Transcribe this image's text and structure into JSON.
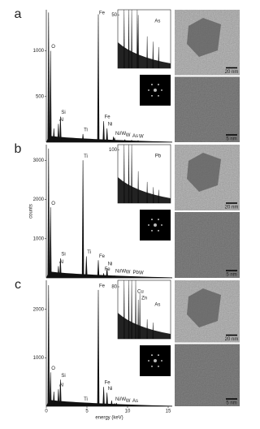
{
  "chart_data": [
    {
      "type": "spectrum",
      "panel": "a",
      "xlim": [
        0,
        15.5
      ],
      "ylim": [
        0,
        1450
      ],
      "yticks": [
        500,
        1000
      ],
      "peaks": {
        "x": [
          0.28,
          0.52,
          0.93,
          1.49,
          1.74,
          4.51,
          4.93,
          6.4,
          7.06,
          7.47,
          8.26,
          8.4,
          9.67,
          10.5,
          11.3
        ],
        "values": [
          1420,
          1000,
          150,
          200,
          280,
          90,
          30,
          1400,
          230,
          150,
          60,
          50,
          30,
          25,
          20
        ]
      },
      "peak_labels": [
        {
          "label": "O",
          "x": 0.52
        },
        {
          "label": "Al",
          "x": 1.49
        },
        {
          "label": "Si",
          "x": 1.74
        },
        {
          "label": "Ti",
          "x": 4.51
        },
        {
          "label": "Fe",
          "x": 6.4
        },
        {
          "label": "Fe",
          "x": 7.06
        },
        {
          "label": "Ni",
          "x": 7.47
        },
        {
          "label": "Ni/W",
          "x": 8.4
        },
        {
          "label": "W",
          "x": 9.67
        },
        {
          "label": "As",
          "x": 10.5
        },
        {
          "label": "W",
          "x": 11.3
        }
      ],
      "inset": {
        "xlim": [
          5.5,
          13
        ],
        "ylim": [
          0,
          55
        ],
        "yticks": [
          50
        ],
        "labels": [
          {
            "label": "As",
            "x": 10.5
          }
        ]
      },
      "images": [
        {
          "scale": "20 nm"
        },
        {
          "scale": "5 nm"
        }
      ]
    },
    {
      "type": "spectrum",
      "panel": "b",
      "xlim": [
        0,
        15.5
      ],
      "ylim": [
        0,
        3400
      ],
      "yticks": [
        1000,
        2000,
        3000
      ],
      "ylabel": "counts",
      "peaks": {
        "x": [
          0.28,
          0.52,
          1.49,
          1.74,
          4.51,
          4.93,
          6.4,
          7.06,
          7.47,
          8.4,
          9.67,
          10.55,
          11.3
        ],
        "values": [
          3300,
          1800,
          300,
          500,
          3000,
          550,
          450,
          120,
          250,
          60,
          40,
          30,
          25
        ]
      },
      "peak_labels": [
        {
          "label": "O",
          "x": 0.52
        },
        {
          "label": "Al",
          "x": 1.49
        },
        {
          "label": "Si",
          "x": 1.74
        },
        {
          "label": "Ti",
          "x": 4.51
        },
        {
          "label": "Ti",
          "x": 4.93
        },
        {
          "label": "Fe",
          "x": 6.4
        },
        {
          "label": "Fe",
          "x": 7.06
        },
        {
          "label": "Ni",
          "x": 7.47
        },
        {
          "label": "Ni/W",
          "x": 8.4
        },
        {
          "label": "W",
          "x": 9.67
        },
        {
          "label": "Pb",
          "x": 10.55
        },
        {
          "label": "W",
          "x": 11.3
        }
      ],
      "inset": {
        "xlim": [
          5.5,
          13
        ],
        "ylim": [
          0,
          110
        ],
        "yticks": [
          100
        ],
        "labels": [
          {
            "label": "Pb",
            "x": 10.55
          }
        ]
      },
      "images": [
        {
          "scale": "20 nm"
        },
        {
          "scale": "5 nm"
        }
      ]
    },
    {
      "type": "spectrum",
      "panel": "c",
      "xlim": [
        0,
        15.5
      ],
      "ylim": [
        0,
        2600
      ],
      "yticks": [
        1000,
        2000
      ],
      "xticks": [
        0,
        5,
        10,
        15
      ],
      "xlabel": "energy (keV)",
      "peaks": {
        "x": [
          0.28,
          0.52,
          0.93,
          1.49,
          1.74,
          4.51,
          6.4,
          7.06,
          7.47,
          8.04,
          8.4,
          8.63,
          9.67,
          10.5
        ],
        "values": [
          2500,
          700,
          300,
          350,
          550,
          60,
          2400,
          400,
          280,
          120,
          60,
          70,
          30,
          25
        ]
      },
      "peak_labels": [
        {
          "label": "O",
          "x": 0.52
        },
        {
          "label": "Al",
          "x": 1.49
        },
        {
          "label": "Si",
          "x": 1.74
        },
        {
          "label": "Ti",
          "x": 4.51
        },
        {
          "label": "Fe",
          "x": 6.4
        },
        {
          "label": "Fe",
          "x": 7.06
        },
        {
          "label": "Ni",
          "x": 7.47
        },
        {
          "label": "Ni/W",
          "x": 8.4
        },
        {
          "label": "W",
          "x": 9.67
        },
        {
          "label": "As",
          "x": 10.5
        }
      ],
      "inset": {
        "xlim": [
          5.5,
          13
        ],
        "ylim": [
          0,
          90
        ],
        "yticks": [
          80
        ],
        "labels": [
          {
            "label": "Cu",
            "x": 8.04
          },
          {
            "label": "Zn",
            "x": 8.63
          },
          {
            "label": "As",
            "x": 10.5
          }
        ]
      },
      "images": [
        {
          "scale": "20 nm"
        },
        {
          "scale": "5 nm"
        }
      ]
    }
  ]
}
